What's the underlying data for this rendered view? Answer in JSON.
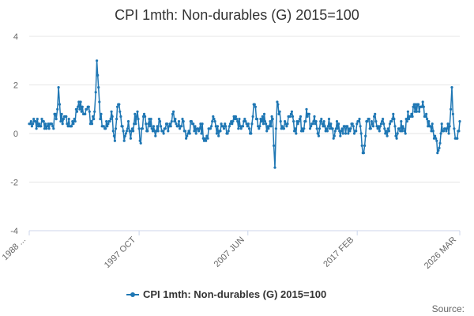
{
  "chart_data": {
    "type": "line",
    "title": "CPI 1mth: Non-durables (G) 2015=100",
    "xlabel": "",
    "ylabel": "",
    "ylim": [
      -4,
      4
    ],
    "yticks": [
      4,
      2,
      0,
      -2,
      -4
    ],
    "x_start": "1988 JAN",
    "x_end": "2026 MAR",
    "xticks": [
      "1988 ...",
      "1997 OCT",
      "2007 JUN",
      "2017 FEB",
      "2026 MAR"
    ],
    "grid": true,
    "legend": "bottom-center",
    "series_color": "#1f77b4",
    "source_label": "Source:",
    "series": [
      {
        "name": "CPI 1mth: Non-durables (G) 2015=100",
        "anchors": [
          [
            1988.0,
            0.4
          ],
          [
            1988.4,
            0.6
          ],
          [
            1988.8,
            0.3
          ],
          [
            1989.2,
            0.5
          ],
          [
            1989.6,
            0.3
          ],
          [
            1990.0,
            0.4
          ],
          [
            1990.4,
            0.6
          ],
          [
            1990.6,
            1.9
          ],
          [
            1990.8,
            0.5
          ],
          [
            1991.2,
            0.7
          ],
          [
            1991.6,
            0.3
          ],
          [
            1992.0,
            0.6
          ],
          [
            1992.4,
            1.3
          ],
          [
            1992.8,
            0.8
          ],
          [
            1993.2,
            1.1
          ],
          [
            1993.5,
            0.5
          ],
          [
            1993.8,
            0.9
          ],
          [
            1994.0,
            3.0
          ],
          [
            1994.3,
            0.6
          ],
          [
            1994.7,
            0.2
          ],
          [
            1995.0,
            0.4
          ],
          [
            1995.3,
            0.9
          ],
          [
            1995.6,
            -0.3
          ],
          [
            1995.9,
            1.2
          ],
          [
            1996.2,
            0.3
          ],
          [
            1996.5,
            -0.1
          ],
          [
            1996.8,
            0.5
          ],
          [
            1997.0,
            -0.2
          ],
          [
            1997.3,
            0.4
          ],
          [
            1997.6,
            0.9
          ],
          [
            1997.9,
            -0.4
          ],
          [
            1998.2,
            0.8
          ],
          [
            1998.5,
            0.1
          ],
          [
            1998.8,
            0.6
          ],
          [
            1999.2,
            -0.1
          ],
          [
            1999.6,
            0.5
          ],
          [
            2000.0,
            0.2
          ],
          [
            2000.4,
            0.3
          ],
          [
            2000.8,
            0.9
          ],
          [
            2001.2,
            0.3
          ],
          [
            2001.6,
            0.6
          ],
          [
            2002.0,
            -0.1
          ],
          [
            2002.4,
            0.5
          ],
          [
            2002.8,
            0.0
          ],
          [
            2003.2,
            0.4
          ],
          [
            2003.6,
            -0.2
          ],
          [
            2004.0,
            0.2
          ],
          [
            2004.4,
            0.6
          ],
          [
            2004.8,
            -0.1
          ],
          [
            2005.2,
            0.3
          ],
          [
            2005.6,
            0.0
          ],
          [
            2006.0,
            0.4
          ],
          [
            2006.4,
            0.6
          ],
          [
            2006.8,
            0.2
          ],
          [
            2007.2,
            0.5
          ],
          [
            2007.6,
            0.0
          ],
          [
            2008.0,
            1.2
          ],
          [
            2008.3,
            0.3
          ],
          [
            2008.7,
            0.7
          ],
          [
            2009.0,
            0.4
          ],
          [
            2009.3,
            0.3
          ],
          [
            2009.6,
            0.6
          ],
          [
            2009.8,
            -1.4
          ],
          [
            2010.0,
            1.3
          ],
          [
            2010.3,
            0.5
          ],
          [
            2010.6,
            0.2
          ],
          [
            2011.0,
            0.7
          ],
          [
            2011.3,
            0.9
          ],
          [
            2011.6,
            0.2
          ],
          [
            2012.0,
            0.6
          ],
          [
            2012.3,
            0.1
          ],
          [
            2012.6,
            1.0
          ],
          [
            2013.0,
            0.3
          ],
          [
            2013.3,
            0.7
          ],
          [
            2013.6,
            0.0
          ],
          [
            2014.0,
            0.4
          ],
          [
            2014.3,
            0.1
          ],
          [
            2014.6,
            0.6
          ],
          [
            2015.0,
            -0.2
          ],
          [
            2015.3,
            0.5
          ],
          [
            2015.6,
            -0.1
          ],
          [
            2016.0,
            0.3
          ],
          [
            2016.3,
            0.0
          ],
          [
            2016.6,
            0.4
          ],
          [
            2017.0,
            0.1
          ],
          [
            2017.3,
            0.6
          ],
          [
            2017.6,
            -0.8
          ],
          [
            2018.0,
            0.5
          ],
          [
            2018.3,
            0.2
          ],
          [
            2018.6,
            0.7
          ],
          [
            2019.0,
            0.3
          ],
          [
            2019.3,
            0.5
          ],
          [
            2019.6,
            0.0
          ],
          [
            2020.0,
            0.4
          ],
          [
            2020.3,
            0.8
          ],
          [
            2020.6,
            -0.2
          ],
          [
            2021.0,
            0.5
          ],
          [
            2021.3,
            0.1
          ],
          [
            2021.6,
            0.9
          ],
          [
            2022.0,
            0.7
          ],
          [
            2022.3,
            1.2
          ],
          [
            2022.6,
            0.9
          ],
          [
            2023.0,
            1.1
          ],
          [
            2023.3,
            0.6
          ],
          [
            2023.6,
            0.3
          ],
          [
            2024.0,
            -0.1
          ],
          [
            2024.3,
            -0.7
          ],
          [
            2024.6,
            0.4
          ],
          [
            2025.0,
            0.1
          ],
          [
            2025.3,
            0.3
          ],
          [
            2025.5,
            1.9
          ],
          [
            2025.7,
            0.2
          ],
          [
            2025.9,
            -0.2
          ],
          [
            2026.2,
            0.5
          ]
        ]
      }
    ]
  }
}
